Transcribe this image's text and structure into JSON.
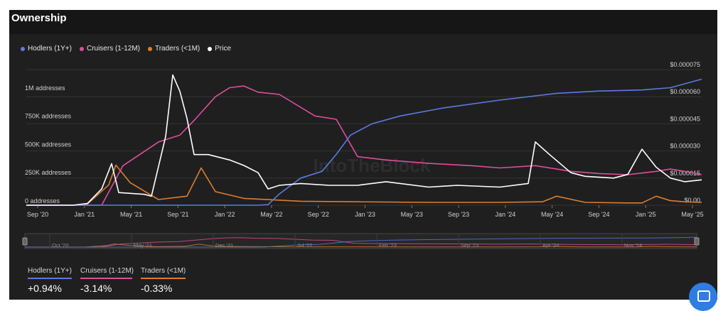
{
  "title": "Ownership",
  "colors": {
    "hodlers": "#5b7bdf",
    "cruisers": "#dc4f9c",
    "traders": "#de7d2e",
    "price": "#ffffff"
  },
  "chart_data": {
    "type": "line",
    "title": "Ownership",
    "legend": [
      {
        "name": "Hodlers (1Y+)",
        "color": "#5b7bdf"
      },
      {
        "name": "Cruisers (1-12M)",
        "color": "#dc4f9c"
      },
      {
        "name": "Traders (<1M)",
        "color": "#de7d2e"
      },
      {
        "name": "Price",
        "color": "#ffffff"
      }
    ],
    "x_ticks": [
      "Sep '20",
      "Jan '21",
      "May '21",
      "Sep '21",
      "Jan '22",
      "May '22",
      "Sep '22",
      "Jan '23",
      "May '23",
      "Sep '23",
      "Jan '24",
      "May '24",
      "Sep '24",
      "Jan '25",
      "May '25"
    ],
    "x_range": [
      2020.67,
      2025.42
    ],
    "y_left": {
      "ticks": [
        "0 addresses",
        "250K addresses",
        "500K addresses",
        "750K addresses",
        "1M addresses"
      ],
      "tick_values": [
        0,
        250000,
        500000,
        750000,
        1000000
      ],
      "range": [
        0,
        1200000
      ]
    },
    "y_right": {
      "ticks": [
        "$0.00",
        "$0.000015",
        "$0.000030",
        "$0.000045",
        "$0.000060",
        "$0.000075"
      ],
      "tick_values": [
        0,
        1.5e-05,
        3e-05,
        4.5e-05,
        6e-05,
        7.5e-05
      ],
      "range": [
        0,
        7.5e-05
      ]
    },
    "watermark": "IntoTheBlock",
    "series": [
      {
        "name": "Hodlers (1Y+)",
        "axis": "left",
        "x": [
          2020.67,
          2021.0,
          2021.5,
          2021.9,
          2022.2,
          2022.3,
          2022.37,
          2022.45,
          2022.6,
          2022.75,
          2022.85,
          2022.95,
          2023.1,
          2023.3,
          2023.6,
          2024.0,
          2024.4,
          2024.7,
          2025.0,
          2025.2,
          2025.42
        ],
        "values": [
          0,
          0,
          0,
          0,
          0,
          0,
          5000,
          100000,
          240000,
          300000,
          450000,
          620000,
          720000,
          790000,
          860000,
          930000,
          990000,
          1010000,
          1020000,
          1040000,
          1115000
        ]
      },
      {
        "name": "Cruisers (1-12M)",
        "axis": "left",
        "x": [
          2020.67,
          2020.95,
          2021.2,
          2021.35,
          2021.6,
          2021.75,
          2021.85,
          2022.0,
          2022.1,
          2022.2,
          2022.3,
          2022.45,
          2022.7,
          2022.85,
          2023.0,
          2023.2,
          2023.5,
          2023.8,
          2024.0,
          2024.25,
          2024.5,
          2024.7,
          2024.9,
          2025.1,
          2025.2,
          2025.3,
          2025.42
        ],
        "values": [
          0,
          0,
          0,
          350000,
          560000,
          620000,
          750000,
          960000,
          1040000,
          1055000,
          1000000,
          980000,
          790000,
          760000,
          430000,
          400000,
          370000,
          350000,
          330000,
          350000,
          300000,
          280000,
          270000,
          300000,
          320000,
          300000,
          270000
        ]
      },
      {
        "name": "Traders (<1M)",
        "axis": "left",
        "x": [
          2020.67,
          2021.0,
          2021.1,
          2021.25,
          2021.3,
          2021.4,
          2021.6,
          2021.8,
          2021.9,
          2022.0,
          2022.2,
          2022.6,
          2023.0,
          2023.5,
          2024.0,
          2024.3,
          2024.4,
          2024.6,
          2024.9,
          2025.0,
          2025.1,
          2025.2,
          2025.3,
          2025.42
        ],
        "values": [
          0,
          0,
          10000,
          180000,
          355000,
          200000,
          50000,
          80000,
          330000,
          120000,
          60000,
          35000,
          30000,
          25000,
          25000,
          30000,
          80000,
          25000,
          20000,
          20000,
          80000,
          40000,
          30000,
          25000
        ]
      },
      {
        "name": "Price",
        "axis": "right",
        "x": [
          2020.67,
          2021.0,
          2021.1,
          2021.2,
          2021.27,
          2021.32,
          2021.5,
          2021.55,
          2021.65,
          2021.7,
          2021.75,
          2021.8,
          2021.85,
          2021.95,
          2022.1,
          2022.2,
          2022.3,
          2022.37,
          2022.45,
          2022.6,
          2022.8,
          2023.0,
          2023.2,
          2023.5,
          2023.7,
          2024.0,
          2024.2,
          2024.25,
          2024.35,
          2024.5,
          2024.6,
          2024.8,
          2024.9,
          2025.0,
          2025.1,
          2025.2,
          2025.3,
          2025.42
        ],
        "values": [
          0,
          0,
          1e-06,
          9e-06,
          2.3e-05,
          7e-06,
          6e-06,
          5e-06,
          3.8e-05,
          7.2e-05,
          6.3e-05,
          4.8e-05,
          2.8e-05,
          2.8e-05,
          2.5e-05,
          2.2e-05,
          1.8e-05,
          9e-06,
          1.1e-05,
          1.2e-05,
          1.1e-05,
          1.1e-05,
          1.3e-05,
          1e-05,
          1.1e-05,
          1e-05,
          1.2e-05,
          3.5e-05,
          2.8e-05,
          1.8e-05,
          1.6e-05,
          1.5e-05,
          1.7e-05,
          3.1e-05,
          2.1e-05,
          1.5e-05,
          1.3e-05,
          1.4e-05
        ]
      }
    ],
    "navigator": {
      "labels": [
        "Oct '20",
        "May '21",
        "Dec '21",
        "Jul '22",
        "Feb '23",
        "Sep '23",
        "Apr '24",
        "Nov '24"
      ]
    }
  },
  "stats": [
    {
      "name": "Hodlers (1Y+)",
      "value": "+0.94%",
      "color": "#5b7bdf"
    },
    {
      "name": "Cruisers (1-12M)",
      "value": "-3.14%",
      "color": "#dc4f9c"
    },
    {
      "name": "Traders (<1M)",
      "value": "-0.33%",
      "color": "#de7d2e"
    }
  ]
}
